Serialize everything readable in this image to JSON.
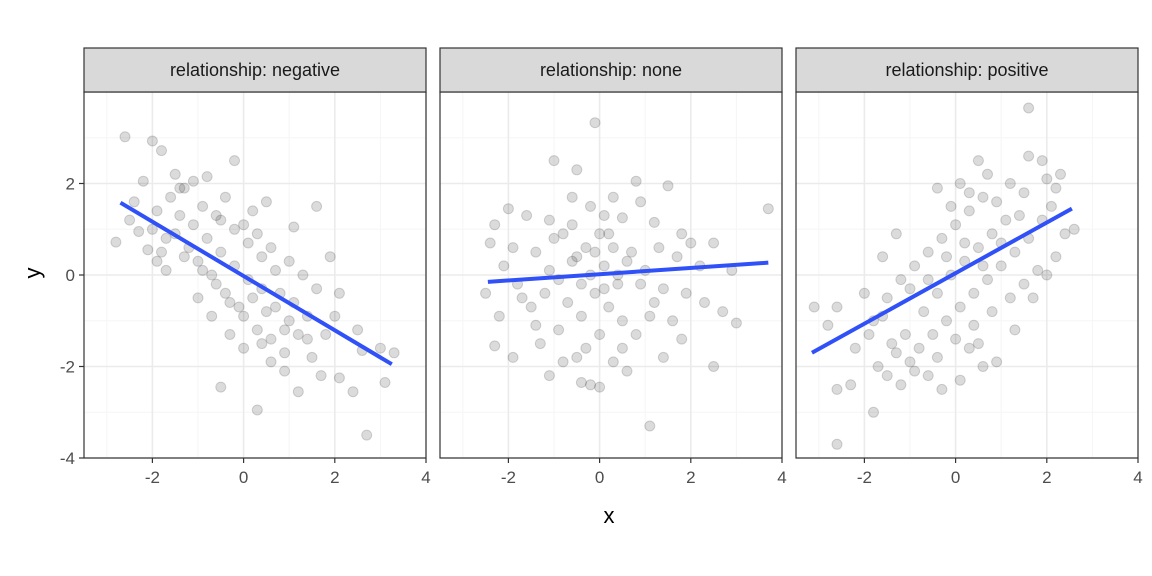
{
  "chart_data": {
    "type": "scatter",
    "xlabel": "x",
    "ylabel": "y",
    "xlim": [
      -3.5,
      4.0
    ],
    "ylim": [
      -4.0,
      4.0
    ],
    "x_ticks": [
      -2,
      0,
      2,
      4
    ],
    "y_ticks": [
      -4,
      -2,
      0,
      2
    ],
    "grid": true,
    "colors": {
      "points": "#000000",
      "fit_line": "#3050f8",
      "strip_fill": "#d9d9d9",
      "panel_border": "#333333",
      "grid_major": "#ebebeb",
      "grid_minor": "#f5f5f5"
    },
    "panels": [
      {
        "strip_label": "relationship: negative",
        "fit_line": [
          [
            -2.7,
            1.58
          ],
          [
            3.25,
            -1.95
          ]
        ],
        "points": [
          [
            -2.6,
            3.02
          ],
          [
            -2.0,
            2.93
          ],
          [
            -1.8,
            2.72
          ],
          [
            -2.2,
            2.05
          ],
          [
            -2.8,
            0.72
          ],
          [
            -2.5,
            1.2
          ],
          [
            -2.3,
            0.95
          ],
          [
            -2.1,
            0.55
          ],
          [
            -1.9,
            0.3
          ],
          [
            -1.7,
            0.1
          ],
          [
            -1.9,
            1.4
          ],
          [
            -1.6,
            1.7
          ],
          [
            -1.5,
            2.2
          ],
          [
            -1.3,
            1.9
          ],
          [
            -1.1,
            2.05
          ],
          [
            -0.8,
            2.15
          ],
          [
            -0.4,
            1.7
          ],
          [
            -0.2,
            2.5
          ],
          [
            0.2,
            1.4
          ],
          [
            0.5,
            1.6
          ],
          [
            1.1,
            1.05
          ],
          [
            1.6,
            1.5
          ],
          [
            1.9,
            0.4
          ],
          [
            2.1,
            -0.4
          ],
          [
            2.5,
            -1.2
          ],
          [
            2.6,
            -1.65
          ],
          [
            3.0,
            -1.6
          ],
          [
            3.3,
            -1.7
          ],
          [
            3.1,
            -2.35
          ],
          [
            2.4,
            -2.55
          ],
          [
            2.1,
            -2.25
          ],
          [
            1.7,
            -2.2
          ],
          [
            1.2,
            -2.55
          ],
          [
            0.9,
            -2.1
          ],
          [
            0.6,
            -1.9
          ],
          [
            0.3,
            -2.95
          ],
          [
            -0.5,
            -2.45
          ],
          [
            2.7,
            -3.5
          ],
          [
            1.4,
            -1.4
          ],
          [
            1.0,
            -1.0
          ],
          [
            0.7,
            -0.7
          ],
          [
            0.4,
            -0.3
          ],
          [
            0.1,
            -0.1
          ],
          [
            -0.2,
            0.2
          ],
          [
            -0.5,
            0.5
          ],
          [
            -0.8,
            0.8
          ],
          [
            -1.1,
            1.1
          ],
          [
            -1.4,
            1.3
          ],
          [
            -0.9,
            0.1
          ],
          [
            -0.6,
            -0.2
          ],
          [
            -0.3,
            -0.6
          ],
          [
            0.0,
            -0.9
          ],
          [
            0.3,
            -1.2
          ],
          [
            0.6,
            -1.4
          ],
          [
            0.9,
            -1.7
          ],
          [
            -1.2,
            0.6
          ],
          [
            -1.0,
            0.3
          ],
          [
            -0.7,
            0.0
          ],
          [
            -0.4,
            -0.4
          ],
          [
            -0.1,
            -0.7
          ],
          [
            0.2,
            -0.5
          ],
          [
            0.5,
            -0.8
          ],
          [
            0.8,
            -0.4
          ],
          [
            1.1,
            -0.6
          ],
          [
            1.4,
            -0.9
          ],
          [
            -0.5,
            1.2
          ],
          [
            -0.2,
            1.0
          ],
          [
            0.1,
            0.7
          ],
          [
            0.4,
            0.4
          ],
          [
            0.7,
            0.1
          ],
          [
            1.0,
            0.3
          ],
          [
            1.3,
            0.0
          ],
          [
            1.6,
            -0.3
          ],
          [
            -1.5,
            0.9
          ],
          [
            -1.3,
            0.4
          ],
          [
            -0.9,
            1.5
          ],
          [
            -0.6,
            1.3
          ],
          [
            0.0,
            1.1
          ],
          [
            0.3,
            0.9
          ],
          [
            0.6,
            0.6
          ],
          [
            -0.3,
            -1.3
          ],
          [
            0.0,
            -1.6
          ],
          [
            0.4,
            -1.5
          ],
          [
            -0.7,
            -0.9
          ],
          [
            -1.0,
            -0.5
          ],
          [
            1.8,
            -1.3
          ],
          [
            2.0,
            -0.9
          ],
          [
            1.5,
            -1.8
          ],
          [
            1.2,
            -1.3
          ],
          [
            0.9,
            -1.2
          ],
          [
            -1.7,
            0.8
          ],
          [
            -2.0,
            1.0
          ],
          [
            -1.8,
            0.5
          ],
          [
            -2.4,
            1.6
          ],
          [
            -1.4,
            1.9
          ]
        ]
      },
      {
        "strip_label": "relationship: none",
        "fit_line": [
          [
            -2.45,
            -0.15
          ],
          [
            3.7,
            0.27
          ]
        ],
        "points": [
          [
            -0.1,
            3.33
          ],
          [
            -1.0,
            2.5
          ],
          [
            -0.5,
            2.3
          ],
          [
            0.8,
            2.05
          ],
          [
            1.5,
            1.95
          ],
          [
            -2.3,
            1.1
          ],
          [
            -2.0,
            1.45
          ],
          [
            -1.6,
            1.3
          ],
          [
            -1.1,
            1.2
          ],
          [
            -0.6,
            1.1
          ],
          [
            0.1,
            1.3
          ],
          [
            0.5,
            1.25
          ],
          [
            1.2,
            1.15
          ],
          [
            1.8,
            0.9
          ],
          [
            2.5,
            0.7
          ],
          [
            -2.5,
            -0.4
          ],
          [
            -2.2,
            -0.9
          ],
          [
            -2.3,
            -1.55
          ],
          [
            -1.9,
            -1.8
          ],
          [
            -1.3,
            -1.5
          ],
          [
            -0.9,
            -1.2
          ],
          [
            -0.5,
            -1.8
          ],
          [
            -0.4,
            -2.35
          ],
          [
            -0.2,
            -2.4
          ],
          [
            0.0,
            -2.45
          ],
          [
            -1.1,
            -2.2
          ],
          [
            1.1,
            -3.3
          ],
          [
            0.5,
            -1.6
          ],
          [
            1.4,
            -1.8
          ],
          [
            2.5,
            -2.0
          ],
          [
            2.7,
            -0.8
          ],
          [
            3.0,
            -1.05
          ],
          [
            3.7,
            1.45
          ],
          [
            2.9,
            0.1
          ],
          [
            2.2,
            0.2
          ],
          [
            1.9,
            -0.4
          ],
          [
            1.6,
            -1.0
          ],
          [
            1.2,
            -0.6
          ],
          [
            0.9,
            -0.2
          ],
          [
            0.6,
            0.3
          ],
          [
            0.3,
            0.6
          ],
          [
            0.0,
            0.9
          ],
          [
            -0.3,
            0.6
          ],
          [
            -0.6,
            0.3
          ],
          [
            -0.9,
            -0.1
          ],
          [
            -1.2,
            -0.4
          ],
          [
            -1.5,
            -0.7
          ],
          [
            -1.8,
            -0.2
          ],
          [
            -1.4,
            0.5
          ],
          [
            -1.0,
            0.8
          ],
          [
            -0.7,
            -0.6
          ],
          [
            -0.4,
            -0.9
          ],
          [
            -0.1,
            -0.4
          ],
          [
            0.2,
            -0.7
          ],
          [
            0.5,
            -1.0
          ],
          [
            0.8,
            -1.3
          ],
          [
            1.1,
            -0.9
          ],
          [
            1.4,
            -0.3
          ],
          [
            1.7,
            0.4
          ],
          [
            2.0,
            0.7
          ],
          [
            -0.2,
            0.0
          ],
          [
            0.1,
            0.2
          ],
          [
            0.4,
            -0.2
          ],
          [
            0.7,
            0.5
          ],
          [
            1.0,
            0.1
          ],
          [
            -0.5,
            0.4
          ],
          [
            -0.8,
            0.9
          ],
          [
            -1.1,
            0.1
          ],
          [
            -1.4,
            -1.1
          ],
          [
            -1.7,
            -0.5
          ],
          [
            0.3,
            1.7
          ],
          [
            -0.2,
            1.5
          ],
          [
            -0.6,
            1.7
          ],
          [
            0.9,
            1.6
          ],
          [
            1.3,
            0.6
          ],
          [
            -1.9,
            0.6
          ],
          [
            -2.1,
            0.2
          ],
          [
            -2.4,
            0.7
          ],
          [
            2.3,
            -0.6
          ],
          [
            1.8,
            -1.4
          ],
          [
            0.0,
            -1.3
          ],
          [
            -0.3,
            -1.6
          ],
          [
            0.3,
            -1.9
          ],
          [
            0.6,
            -2.1
          ],
          [
            -0.8,
            -1.9
          ],
          [
            0.2,
            0.9
          ],
          [
            -0.1,
            0.5
          ],
          [
            0.4,
            0.0
          ],
          [
            -0.4,
            -0.2
          ],
          [
            0.1,
            -0.3
          ]
        ]
      },
      {
        "strip_label": "relationship: positive",
        "fit_line": [
          [
            -3.15,
            -1.7
          ],
          [
            2.55,
            1.45
          ]
        ],
        "points": [
          [
            -3.1,
            -0.7
          ],
          [
            -2.6,
            -0.7
          ],
          [
            -2.8,
            -1.1
          ],
          [
            -2.6,
            -2.5
          ],
          [
            -2.6,
            -3.7
          ],
          [
            -2.3,
            -2.4
          ],
          [
            -1.8,
            -3.0
          ],
          [
            -1.5,
            -2.2
          ],
          [
            -2.0,
            -0.4
          ],
          [
            -1.6,
            -0.9
          ],
          [
            -1.3,
            -1.7
          ],
          [
            -1.0,
            -1.9
          ],
          [
            -0.6,
            -2.2
          ],
          [
            0.1,
            -2.3
          ],
          [
            0.3,
            -1.6
          ],
          [
            0.5,
            -1.5
          ],
          [
            0.9,
            -1.9
          ],
          [
            1.3,
            -1.2
          ],
          [
            1.7,
            -0.5
          ],
          [
            2.0,
            0.0
          ],
          [
            2.2,
            0.4
          ],
          [
            2.4,
            0.9
          ],
          [
            2.6,
            1.0
          ],
          [
            2.1,
            1.5
          ],
          [
            2.0,
            2.1
          ],
          [
            1.9,
            2.5
          ],
          [
            1.6,
            2.6
          ],
          [
            2.3,
            2.2
          ],
          [
            1.6,
            3.65
          ],
          [
            0.5,
            2.5
          ],
          [
            0.1,
            2.0
          ],
          [
            -0.4,
            1.9
          ],
          [
            -1.3,
            0.9
          ],
          [
            -1.6,
            0.4
          ],
          [
            -1.0,
            -0.3
          ],
          [
            -0.7,
            -0.8
          ],
          [
            -0.4,
            -0.4
          ],
          [
            -0.1,
            0.0
          ],
          [
            0.2,
            0.3
          ],
          [
            0.5,
            0.6
          ],
          [
            0.8,
            0.9
          ],
          [
            1.1,
            1.2
          ],
          [
            1.4,
            1.3
          ],
          [
            -0.6,
            0.5
          ],
          [
            -0.3,
            0.8
          ],
          [
            0.0,
            1.1
          ],
          [
            0.3,
            1.4
          ],
          [
            0.6,
            1.7
          ],
          [
            -0.9,
            0.2
          ],
          [
            -1.2,
            -0.1
          ],
          [
            -1.5,
            -0.5
          ],
          [
            -1.8,
            -1.0
          ],
          [
            -0.5,
            -1.3
          ],
          [
            -0.2,
            -1.0
          ],
          [
            0.1,
            -0.7
          ],
          [
            0.4,
            -0.4
          ],
          [
            0.7,
            -0.1
          ],
          [
            1.0,
            0.2
          ],
          [
            1.3,
            0.5
          ],
          [
            1.6,
            0.8
          ],
          [
            -0.8,
            -1.6
          ],
          [
            -0.4,
            -1.8
          ],
          [
            0.0,
            -1.4
          ],
          [
            0.4,
            -1.1
          ],
          [
            0.8,
            -0.8
          ],
          [
            1.2,
            -0.5
          ],
          [
            1.5,
            -0.2
          ],
          [
            1.8,
            0.1
          ],
          [
            -1.1,
            -1.3
          ],
          [
            -1.4,
            -1.5
          ],
          [
            -0.2,
            0.4
          ],
          [
            0.2,
            0.7
          ],
          [
            0.6,
            0.2
          ],
          [
            1.0,
            0.7
          ],
          [
            -0.6,
            -0.1
          ],
          [
            0.3,
            1.8
          ],
          [
            0.9,
            1.6
          ],
          [
            1.2,
            2.0
          ],
          [
            0.7,
            2.2
          ],
          [
            -0.1,
            1.5
          ],
          [
            -2.2,
            -1.6
          ],
          [
            -1.9,
            -1.3
          ],
          [
            -1.7,
            -2.0
          ],
          [
            -1.2,
            -2.4
          ],
          [
            -0.9,
            -2.1
          ],
          [
            1.9,
            1.2
          ],
          [
            2.2,
            1.9
          ],
          [
            1.5,
            1.8
          ],
          [
            -0.3,
            -2.5
          ],
          [
            0.6,
            -2.0
          ]
        ]
      }
    ]
  }
}
